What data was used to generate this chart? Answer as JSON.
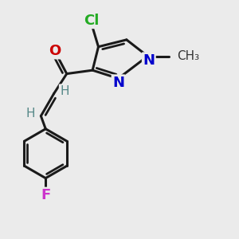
{
  "background_color": "#ebebeb",
  "bond_color": "#1a1a1a",
  "bond_width": 2.2,
  "atoms": {
    "Cl": {
      "color": "#22aa22",
      "fontsize": 13,
      "fontweight": "bold"
    },
    "O": {
      "color": "#cc0000",
      "fontsize": 13,
      "fontweight": "bold"
    },
    "N": {
      "color": "#0000cc",
      "fontsize": 13,
      "fontweight": "bold"
    },
    "F": {
      "color": "#cc33cc",
      "fontsize": 13,
      "fontweight": "bold"
    },
    "H": {
      "color": "#558888",
      "fontsize": 11,
      "fontweight": "normal"
    },
    "CH3": {
      "color": "#333333",
      "fontsize": 11,
      "fontweight": "normal"
    }
  },
  "figsize": [
    3.0,
    3.0
  ],
  "dpi": 100
}
